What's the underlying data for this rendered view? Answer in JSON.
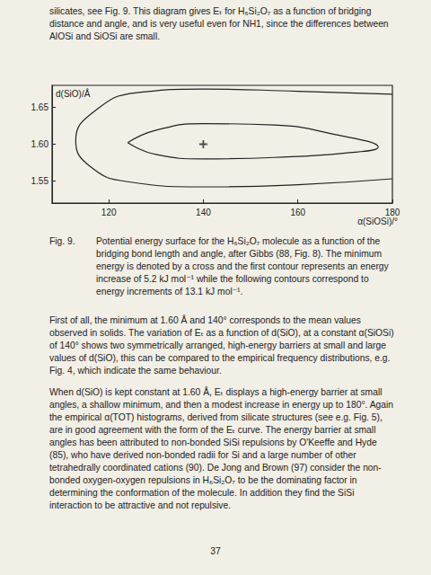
{
  "page": {
    "paragraphs_before": [
      "silicates, see Fig. 9. This diagram gives Eₜ for H₆Si₂O₇ as a function of bridging distance and angle, and is very useful even for NH1, since the differences between AlOSi and SiOSi are small."
    ],
    "caption": {
      "label": "Fig. 9.",
      "text": "Potential energy surface for the H₆Si₂O₇ molecule as a function of the bridging bond length and angle, after Gibbs (88, Fig. 8). The minimum energy is denoted by a cross and the first contour represents an energy increase of 5.2 kJ mol⁻¹ while the following contours correspond to energy increments of 13.1 kJ mol⁻¹."
    },
    "paragraphs_after": [
      "First of all, the minimum at 1.60 Å and 140° corresponds to the mean values observed in solids. The variation of Eₜ as a function of d(SiO), at a constant α(SiOSi) of 140° shows two symmetrically arranged, high-energy barriers at small and large values of d(SiO), this can be compared to the empirical frequency distributions, e.g. Fig. 4, which indicate the same behaviour.",
      "When d(SiO) is kept constant at 1.60 Å, Eₜ displays a high-energy barrier at small angles, a shallow minimum, and then a modest increase in energy up to 180°. Again the empirical α(TOT) histograms, derived from silicate structures (see e.g. Fig. 5), are in good agreement with the form of the Eₜ curve. The energy barrier at small angles has been attributed to non-bonded SiSi repulsions by O'Keeffe and Hyde (85), who have derived non-bonded radii for Si and a large number of other tetrahedrally coordinated cations (90). De Jong and Brown (97) consider the non-bonded oxygen-oxygen repulsions in H₆Si₂O₇ to be the dominating factor in determining the conformation of the molecule. In addition they find the SiSi interaction to be attractive and not repulsive."
    ],
    "page_number": "37"
  },
  "chart_data": {
    "type": "line",
    "xlabel": "α(SiOSi)/°",
    "ylabel": "d(SiO)/Å",
    "xlim": [
      108,
      180
    ],
    "xticks": [
      120,
      140,
      160,
      180
    ],
    "ylim": [
      1.52,
      1.68
    ],
    "yticks": [
      1.55,
      {
        "value": 1.6,
        "label": "1.60"
      },
      1.65
    ],
    "grid": false,
    "color": "#222222",
    "series": [
      {
        "type": "line",
        "line_style": "solid",
        "values": [
          [
            180,
            1.668
          ],
          [
            160,
            1.672
          ],
          [
            140,
            1.675
          ],
          [
            126,
            1.67
          ],
          [
            117,
            1.645
          ],
          [
            113,
            1.605
          ],
          [
            116,
            1.57
          ],
          [
            124,
            1.549
          ],
          [
            140,
            1.542
          ],
          [
            160,
            1.545
          ],
          [
            180,
            1.553
          ]
        ]
      },
      {
        "type": "line",
        "line_style": "solid",
        "values": [
          [
            124,
            1.602
          ],
          [
            130,
            1.619
          ],
          [
            140,
            1.628
          ],
          [
            155,
            1.626
          ],
          [
            168,
            1.613
          ],
          [
            177,
            1.596
          ],
          [
            170,
            1.588
          ],
          [
            155,
            1.582
          ],
          [
            140,
            1.58
          ],
          [
            130,
            1.586
          ],
          [
            124,
            1.602
          ]
        ]
      },
      {
        "type": "scatter",
        "marker": "cross",
        "values": [
          [
            140,
            1.6
          ]
        ]
      }
    ]
  }
}
